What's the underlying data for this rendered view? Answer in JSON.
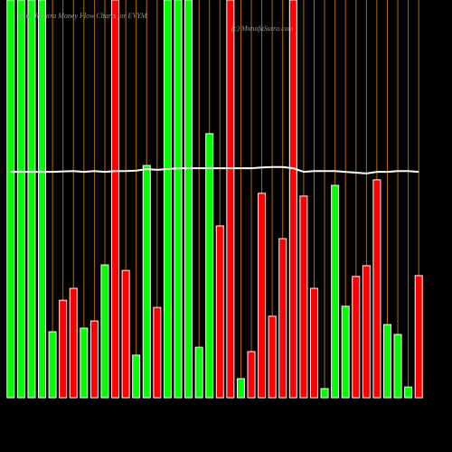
{
  "chart_data": {
    "type": "bar",
    "title": "MunafaSutra  Money Flow  Charts for EVYM",
    "subtitle": "(c) MunafaSutra.com",
    "categories": [
      null,
      null,
      null,
      null,
      null,
      null,
      null,
      null,
      null,
      null,
      null,
      null,
      null,
      null,
      null,
      null,
      null,
      null,
      null,
      null,
      null,
      null,
      null,
      null,
      null,
      null,
      null,
      null,
      null,
      null,
      null,
      null,
      null,
      null,
      null,
      null,
      null,
      null,
      null,
      null
    ],
    "values": [
      100,
      100,
      100,
      100,
      16.6,
      24.5,
      27.5,
      17.5,
      19.3,
      33.4,
      100,
      32,
      10.7,
      58.4,
      22.7,
      100,
      100,
      100,
      12.7,
      66.4,
      43.2,
      100,
      4.8,
      11.6,
      51.4,
      20.5,
      40,
      100,
      50.7,
      27.5,
      2.3,
      53.4,
      23,
      30.5,
      33.2,
      54.8,
      18.4,
      15.9,
      2.7,
      30.7
    ],
    "colors": [
      "#00ff00",
      "#00ff00",
      "#00ff00",
      "#00ff00",
      "#00ff00",
      "#ff0000",
      "#ff0000",
      "#00ff00",
      "#ff0000",
      "#00ff00",
      "#ff0000",
      "#ff0000",
      "#00ff00",
      "#00ff00",
      "#ff0000",
      "#00ff00",
      "#00ff00",
      "#00ff00",
      "#00ff00",
      "#00ff00",
      "#ff0000",
      "#ff0000",
      "#00ff00",
      "#ff0000",
      "#ff0000",
      "#ff0000",
      "#ff0000",
      "#ff0000",
      "#ff0000",
      "#ff0000",
      "#00ff00",
      "#00ff00",
      "#00ff00",
      "#ff0000",
      "#ff0000",
      "#ff0000",
      "#00ff00",
      "#00ff00",
      "#00ff00",
      "#ff0000"
    ],
    "line": {
      "color": "#ffffff",
      "values": [
        56.8,
        56.8,
        56.8,
        56.8,
        56.8,
        56.9,
        57.0,
        56.8,
        57.0,
        56.8,
        57.0,
        57.0,
        57.1,
        57.5,
        57.3,
        57.5,
        57.7,
        57.7,
        57.7,
        57.7,
        57.7,
        57.7,
        57.7,
        57.7,
        57.9,
        58.0,
        58.0,
        57.7,
        56.8,
        57.0,
        57.0,
        57.0,
        56.8,
        56.6,
        56.4,
        56.8,
        56.8,
        57.0,
        57.0,
        56.8
      ]
    },
    "ylim": [
      0,
      100
    ],
    "grid": true,
    "grid_color": "#b86a00"
  }
}
